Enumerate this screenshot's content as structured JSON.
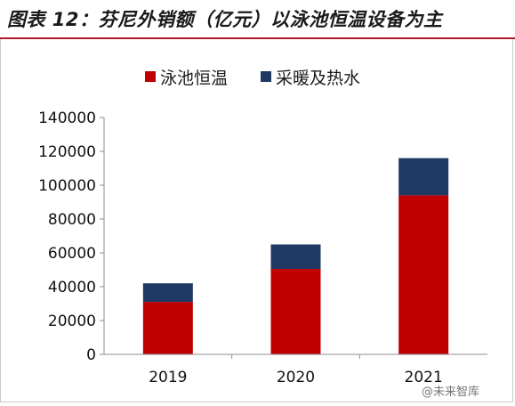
{
  "title": "图表 12：芬尼外销额（亿元）以泳池恒温设备为主",
  "chart_data": {
    "type": "bar",
    "stacked": true,
    "categories": [
      "2019",
      "2020",
      "2021"
    ],
    "series": [
      {
        "name": "泳池恒温",
        "color": "#c00000",
        "values": [
          31000,
          50500,
          94000
        ]
      },
      {
        "name": "采暖及热水",
        "color": "#1f3864",
        "values": [
          11000,
          14500,
          22000
        ]
      }
    ],
    "ylim": [
      0,
      140000
    ],
    "yticks": [
      "0",
      "20000",
      "40000",
      "60000",
      "80000",
      "100000",
      "120000",
      "140000"
    ],
    "legend_position": "top-center",
    "grid": false
  },
  "watermark": "@未来智库"
}
